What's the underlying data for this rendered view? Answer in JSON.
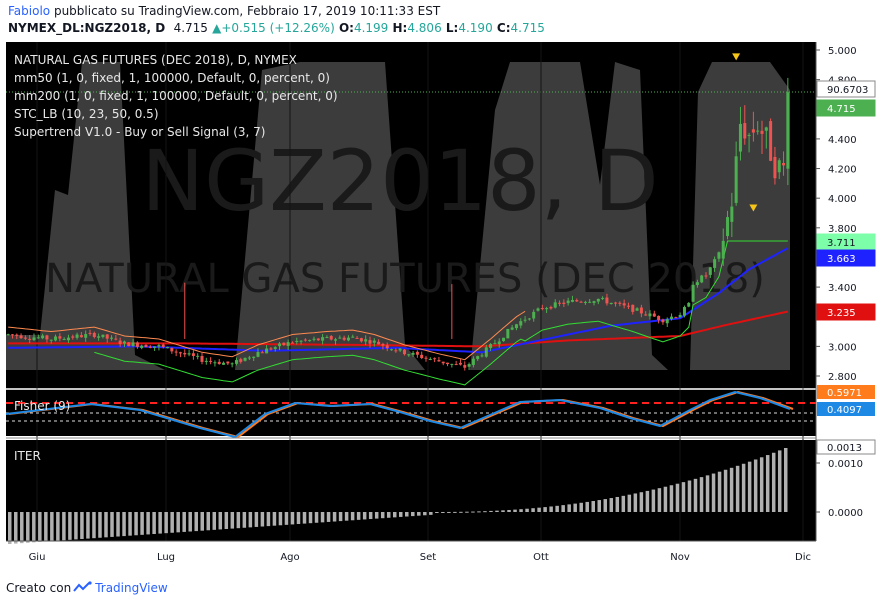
{
  "header": {
    "author": "Fabiolo",
    "published_text": "pubblicato su TradingView.com, Febbraio 17, 2019 10:11:33 EST",
    "symbol": "NYMEX_DL:NGZ2018, D",
    "last": "4.715",
    "change": "+0.515 (+12.26%)",
    "open_label": "O:",
    "open": "4.199",
    "high_label": "H:",
    "high": "4.806",
    "low_label": "L:",
    "low": "4.190",
    "close_label": "C:",
    "close": "4.715"
  },
  "watermark": {
    "big": "NGZ2018, D",
    "small": "NATURAL GAS FUTURES (DEC 2018)"
  },
  "legend": {
    "title": "NATURAL GAS FUTURES (DEC 2018), D, NYMEX",
    "mm50": "mm50 (1, 0, fixed, 1, 100000, Default, 0, percent, 0)",
    "mm200": "mm200 (1, 0, fixed, 1, 100000, Default, 0, percent, 0)",
    "stc": "STC_LB (10, 23, 50, 0.5)",
    "supertrend": "Supertrend V1.0 - Buy or Sell Signal (3, 7)"
  },
  "fisher_label": "Fisher (9)",
  "iter_label": "ITER",
  "footer": {
    "created_with": "Creato con",
    "brand": "TradingView"
  },
  "colors": {
    "background": "#000000",
    "up": "#4caf50",
    "down": "#ef5350",
    "mm50": "#1e22ff",
    "mm200": "#e01010",
    "stc_fill": "#3c3c3c",
    "supertrend": "#33dd33",
    "fisher_main": "#1e88e5",
    "fisher_signal": "#ff7b1c",
    "iter_bar": "#b0b0b0"
  },
  "chart_data": [
    {
      "type": "candlestick",
      "name": "NATURAL GAS FUTURES (DEC 2018), D, NYMEX",
      "x_labels": [
        "Giu",
        "Lug",
        "Ago",
        "Set",
        "Ott",
        "Nov",
        "Dic"
      ],
      "y_ticks": [
        "5.000",
        "4.800",
        "4.600",
        "4.400",
        "4.200",
        "4.000",
        "3.800",
        "3.600",
        "3.400",
        "3.200",
        "3.000",
        "2.800"
      ],
      "ylim": [
        2.75,
        5.05
      ],
      "price_labels": [
        {
          "text": "90.6703",
          "kind": "stc"
        },
        {
          "text": "4.715",
          "kind": "last"
        },
        {
          "text": "3.711",
          "kind": "supertrend"
        },
        {
          "text": "3.663",
          "kind": "mm50"
        },
        {
          "text": "3.235",
          "kind": "mm200"
        }
      ],
      "anchors": [
        {
          "day": 0,
          "price": 3.08
        },
        {
          "day": 10,
          "price": 3.05
        },
        {
          "day": 20,
          "price": 3.08
        },
        {
          "day": 27,
          "price": 3.02
        },
        {
          "day": 35,
          "price": 3.0
        },
        {
          "day": 45,
          "price": 2.91
        },
        {
          "day": 52,
          "price": 2.88
        },
        {
          "day": 58,
          "price": 2.96
        },
        {
          "day": 66,
          "price": 3.03
        },
        {
          "day": 74,
          "price": 3.05
        },
        {
          "day": 80,
          "price": 3.06
        },
        {
          "day": 85,
          "price": 3.03
        },
        {
          "day": 92,
          "price": 2.96
        },
        {
          "day": 100,
          "price": 2.9
        },
        {
          "day": 106,
          "price": 2.86
        },
        {
          "day": 112,
          "price": 3.0
        },
        {
          "day": 118,
          "price": 3.15
        },
        {
          "day": 124,
          "price": 3.26
        },
        {
          "day": 130,
          "price": 3.3
        },
        {
          "day": 137,
          "price": 3.32
        },
        {
          "day": 145,
          "price": 3.25
        },
        {
          "day": 152,
          "price": 3.18
        },
        {
          "day": 156,
          "price": 3.22
        },
        {
          "day": 158,
          "price": 3.28
        },
        {
          "day": 159,
          "price": 3.43
        },
        {
          "day": 162,
          "price": 3.48
        },
        {
          "day": 165,
          "price": 3.62
        },
        {
          "day": 168,
          "price": 3.98
        },
        {
          "day": 170,
          "price": 4.5
        },
        {
          "day": 172,
          "price": 4.42
        },
        {
          "day": 174,
          "price": 4.5
        },
        {
          "day": 176,
          "price": 4.4
        },
        {
          "day": 178,
          "price": 4.22
        },
        {
          "day": 180,
          "price": 4.2
        },
        {
          "day": 181,
          "price": 4.715
        }
      ],
      "mm50": [
        {
          "day": 0,
          "price": 2.99
        },
        {
          "day": 30,
          "price": 3.0
        },
        {
          "day": 60,
          "price": 2.97
        },
        {
          "day": 90,
          "price": 2.99
        },
        {
          "day": 110,
          "price": 2.96
        },
        {
          "day": 125,
          "price": 3.05
        },
        {
          "day": 140,
          "price": 3.14
        },
        {
          "day": 156,
          "price": 3.19
        },
        {
          "day": 165,
          "price": 3.36
        },
        {
          "day": 172,
          "price": 3.52
        },
        {
          "day": 181,
          "price": 3.663
        }
      ],
      "mm200": [
        {
          "day": 0,
          "price": 3.02
        },
        {
          "day": 40,
          "price": 3.02
        },
        {
          "day": 80,
          "price": 3.01
        },
        {
          "day": 110,
          "price": 3.0
        },
        {
          "day": 130,
          "price": 3.04
        },
        {
          "day": 156,
          "price": 3.07
        },
        {
          "day": 166,
          "price": 3.14
        },
        {
          "day": 181,
          "price": 3.235
        }
      ]
    },
    {
      "type": "line",
      "name": "Fisher (9)",
      "values": [
        "0.5971",
        "0.4097"
      ]
    },
    {
      "type": "bar",
      "name": "ITER",
      "y_ticks": [
        "0.0010",
        "0.0000"
      ],
      "last_value": "0.0013"
    }
  ]
}
